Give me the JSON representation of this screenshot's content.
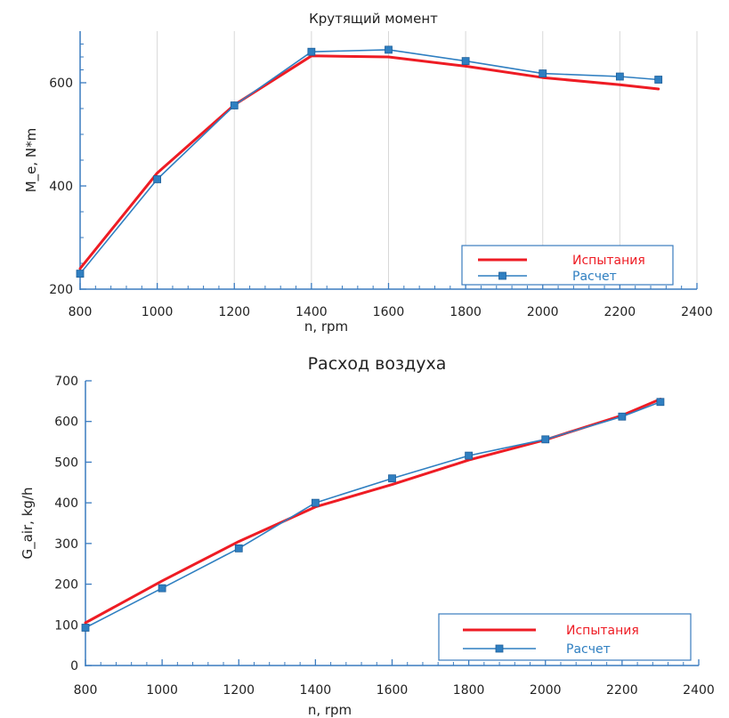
{
  "chart_data": [
    {
      "type": "line",
      "title": "Крутящий момент",
      "xlabel": "n, rpm",
      "ylabel": "M_e, N*m",
      "xlim": [
        800,
        2400
      ],
      "ylim": [
        200,
        700
      ],
      "xticks": [
        "800",
        "1000",
        "1200",
        "1400",
        "1600",
        "1800",
        "2000",
        "2200",
        "2400"
      ],
      "yticks": [
        "200",
        "400",
        "600"
      ],
      "grid": "vertical",
      "legend_position": "bottom-right",
      "series": [
        {
          "name": "Испытания",
          "color": "#ee1c24",
          "marker": "none",
          "x": [
            800,
            1000,
            1200,
            1400,
            1600,
            1800,
            2000,
            2200,
            2300
          ],
          "y": [
            240,
            425,
            557,
            652,
            650,
            632,
            610,
            596,
            588
          ]
        },
        {
          "name": "Расчет",
          "color": "#2f7fc1",
          "marker": "square",
          "x": [
            800,
            1000,
            1200,
            1400,
            1600,
            1800,
            2000,
            2200,
            2300
          ],
          "y": [
            230,
            413,
            556,
            660,
            664,
            642,
            618,
            612,
            606
          ]
        }
      ]
    },
    {
      "type": "line",
      "title": "Расход воздуха",
      "xlabel": "n, rpm",
      "ylabel": "G_air, kg/h",
      "xlim": [
        800,
        2400
      ],
      "ylim": [
        0,
        700
      ],
      "xticks": [
        "800",
        "1000",
        "1200",
        "1400",
        "1600",
        "1800",
        "2000",
        "2200",
        "2400"
      ],
      "yticks": [
        "0",
        "100",
        "200",
        "300",
        "400",
        "500",
        "600",
        "700"
      ],
      "grid": "none",
      "legend_position": "bottom-right",
      "series": [
        {
          "name": "Испытания",
          "color": "#ee1c24",
          "marker": "none",
          "x": [
            800,
            1000,
            1200,
            1400,
            1600,
            1800,
            2000,
            2200,
            2300
          ],
          "y": [
            105,
            208,
            305,
            390,
            445,
            505,
            555,
            615,
            655
          ]
        },
        {
          "name": "Расчет",
          "color": "#2f7fc1",
          "marker": "square",
          "x": [
            800,
            1000,
            1200,
            1400,
            1600,
            1800,
            2000,
            2200,
            2300
          ],
          "y": [
            93,
            190,
            288,
            400,
            460,
            516,
            556,
            612,
            648
          ]
        }
      ]
    }
  ]
}
